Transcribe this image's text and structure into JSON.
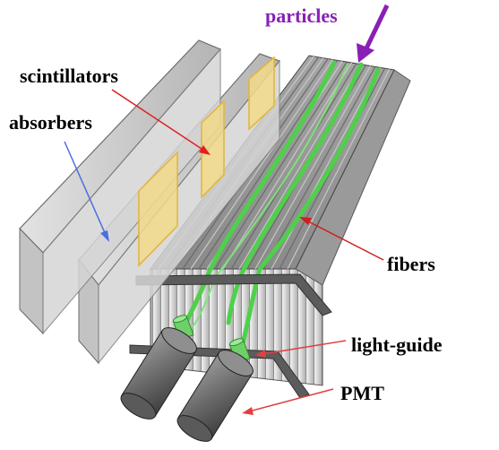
{
  "labels": {
    "particles": "particles",
    "scintillators": "scintillators",
    "absorbers": "absorbers",
    "fibers": "fibers",
    "light_guide": "light-guide",
    "pmt": "PMT"
  },
  "colors": {
    "particles_text": "#8a1fb5",
    "particles_arrow": "#8a1fb5",
    "label_text": "#000000",
    "scintillator_arrow": "#e02020",
    "absorber_arrow": "#4a6ee0",
    "fiber_arrow": "#d21e1e",
    "fiber_green": "#4fd04a",
    "scintillator_fill": "#f2d98a",
    "scintillator_edge": "#e2b53a",
    "absorber_fill": "#c9c9c9",
    "absorber_edge": "#6e6e6e",
    "pmt_fill": "#7d7d7d"
  }
}
